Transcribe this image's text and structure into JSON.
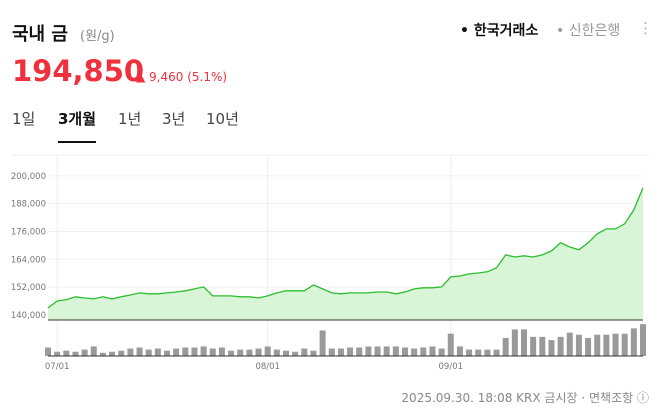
{
  "header": {
    "title": "국내 금",
    "unit": "(원/g)",
    "sources": [
      "한국거래소",
      "신한은행"
    ],
    "price": "194,850",
    "change": "9,460",
    "change_pct": "(5.1%)"
  },
  "tabs": {
    "items": [
      "1일",
      "3개월",
      "1년",
      "3년",
      "10년"
    ],
    "active": 1
  },
  "footer": {
    "timestamp": "2025.09.30. 18:08",
    "source": "KRX 금시장",
    "disclaimer": "면책조항"
  },
  "chart_data": {
    "type": "area",
    "categories": [
      null,
      "07/01",
      null,
      null,
      null,
      null,
      null,
      null,
      null,
      null,
      null,
      null,
      null,
      null,
      null,
      null,
      null,
      null,
      null,
      null,
      null,
      null,
      null,
      null,
      "08/01",
      null,
      null,
      null,
      null,
      null,
      null,
      null,
      null,
      null,
      null,
      null,
      null,
      null,
      null,
      null,
      null,
      null,
      null,
      null,
      "09/01",
      null,
      null,
      null,
      null,
      null,
      null,
      null,
      null,
      null,
      null,
      null,
      null,
      null,
      null,
      null,
      null,
      null,
      null,
      null,
      null,
      null
    ],
    "series": [
      {
        "color": "#2dbd2d",
        "fill": "#d8f5d8",
        "values": [
          143000,
          146000,
          146500,
          147800,
          147300,
          146900,
          147800,
          146900,
          147800,
          148600,
          149500,
          149100,
          149100,
          149500,
          149900,
          150400,
          151200,
          152100,
          148200,
          148200,
          148200,
          147800,
          147800,
          147300,
          148200,
          149500,
          150400,
          150400,
          150400,
          152900,
          151200,
          149500,
          149100,
          149500,
          149500,
          149500,
          149900,
          149900,
          149100,
          149900,
          151200,
          151700,
          151700,
          152100,
          156400,
          156800,
          157700,
          158100,
          158600,
          160300,
          165900,
          165000,
          165500,
          165000,
          165900,
          167600,
          171100,
          169300,
          168100,
          171100,
          175000,
          177100,
          177100,
          179300,
          185300,
          194850
        ]
      },
      {
        "color": "#9a9a9a",
        "axis": "y2",
        "values": [
          8,
          4,
          5,
          4,
          6,
          9,
          3,
          4,
          5,
          7,
          8,
          6,
          7,
          5,
          7,
          8,
          8,
          9,
          7,
          8,
          5,
          6,
          6,
          7,
          9,
          6,
          5,
          4,
          7,
          5,
          24,
          7,
          7,
          8,
          8,
          9,
          9,
          9,
          9,
          8,
          7,
          8,
          9,
          7,
          21,
          9,
          6,
          6,
          6,
          6,
          17,
          25,
          25,
          18,
          18,
          15,
          18,
          22,
          20,
          17,
          20,
          20,
          21,
          21,
          26,
          30
        ]
      }
    ],
    "ylim": [
      137800,
      209000
    ],
    "yticks": [
      {
        "value": 140000,
        "label": "140,000"
      },
      {
        "value": 152000,
        "label": "152,000"
      },
      {
        "value": 164000,
        "label": "164,000"
      },
      {
        "value": 176000,
        "label": "176,000"
      },
      {
        "value": 188000,
        "label": "188,000"
      },
      {
        "value": 200000,
        "label": "200,000"
      }
    ],
    "y2lim": [
      0,
      32
    ],
    "grid": true
  }
}
